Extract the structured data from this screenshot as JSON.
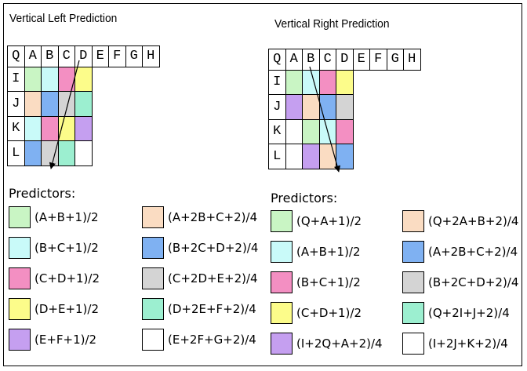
{
  "colors": {
    "green": "#c9f5c4",
    "cyan": "#c9faf9",
    "pink": "#f38fc2",
    "yellow": "#fcfc8a",
    "purple": "#c59ff0",
    "peach": "#fadcc2",
    "blue": "#7fb1f2",
    "gray": "#d4d4d4",
    "teal": "#9cefd0",
    "white": "#ffffff"
  },
  "panels": [
    {
      "title": "Vertical Left Prediction",
      "top_labels": [
        "Q",
        "A",
        "B",
        "C",
        "D",
        "E",
        "F",
        "G",
        "H"
      ],
      "left_labels": [
        "I",
        "J",
        "K",
        "L"
      ],
      "cells": [
        [
          "green",
          "cyan",
          "pink",
          "yellow"
        ],
        [
          "peach",
          "blue",
          "gray",
          "teal"
        ],
        [
          "cyan",
          "pink",
          "yellow",
          "purple"
        ],
        [
          "blue",
          "gray",
          "teal",
          "white"
        ]
      ],
      "predictors_label": "Predictors:",
      "predictors": [
        {
          "color": "green",
          "formula": "(A+B+1)/2"
        },
        {
          "color": "cyan",
          "formula": "(B+C+1)/2"
        },
        {
          "color": "pink",
          "formula": "(C+D+1)/2"
        },
        {
          "color": "yellow",
          "formula": "(D+E+1)/2"
        },
        {
          "color": "purple",
          "formula": "(E+F+1)/2"
        },
        {
          "color": "peach",
          "formula": "(A+2B+C+2)/4"
        },
        {
          "color": "blue",
          "formula": "(B+2C+D+2)/4"
        },
        {
          "color": "gray",
          "formula": "(C+2D+E+2)/4"
        },
        {
          "color": "teal",
          "formula": "(D+2E+F+2)/4"
        },
        {
          "color": "white",
          "formula": "(E+2F+G+2)/4"
        }
      ]
    },
    {
      "title": "Vertical Right Prediction",
      "top_labels": [
        "Q",
        "A",
        "B",
        "C",
        "D",
        "E",
        "F",
        "G",
        "H"
      ],
      "left_labels": [
        "I",
        "J",
        "K",
        "L"
      ],
      "cells": [
        [
          "green",
          "cyan",
          "pink",
          "yellow"
        ],
        [
          "purple",
          "peach",
          "blue",
          "gray"
        ],
        [
          "white",
          "green",
          "cyan",
          "pink"
        ],
        [
          "white",
          "purple",
          "peach",
          "blue"
        ]
      ],
      "predictors_label": "Predictors:",
      "predictors": [
        {
          "color": "green",
          "formula": "(Q+A+1)/2"
        },
        {
          "color": "cyan",
          "formula": "(A+B+1)/2"
        },
        {
          "color": "pink",
          "formula": "(B+C+1)/2"
        },
        {
          "color": "yellow",
          "formula": "(C+D+1)/2"
        },
        {
          "color": "purple",
          "formula": "(I+2Q+A+2)/4"
        },
        {
          "color": "peach",
          "formula": "(Q+2A+B+2)/4"
        },
        {
          "color": "blue",
          "formula": "(A+2B+C+2)/4"
        },
        {
          "color": "gray",
          "formula": "(B+2C+D+2)/4"
        },
        {
          "color": "teal",
          "formula": "(Q+2I+J+2)/4"
        },
        {
          "color": "white",
          "formula": "(I+2J+K+2)/4"
        }
      ]
    }
  ]
}
